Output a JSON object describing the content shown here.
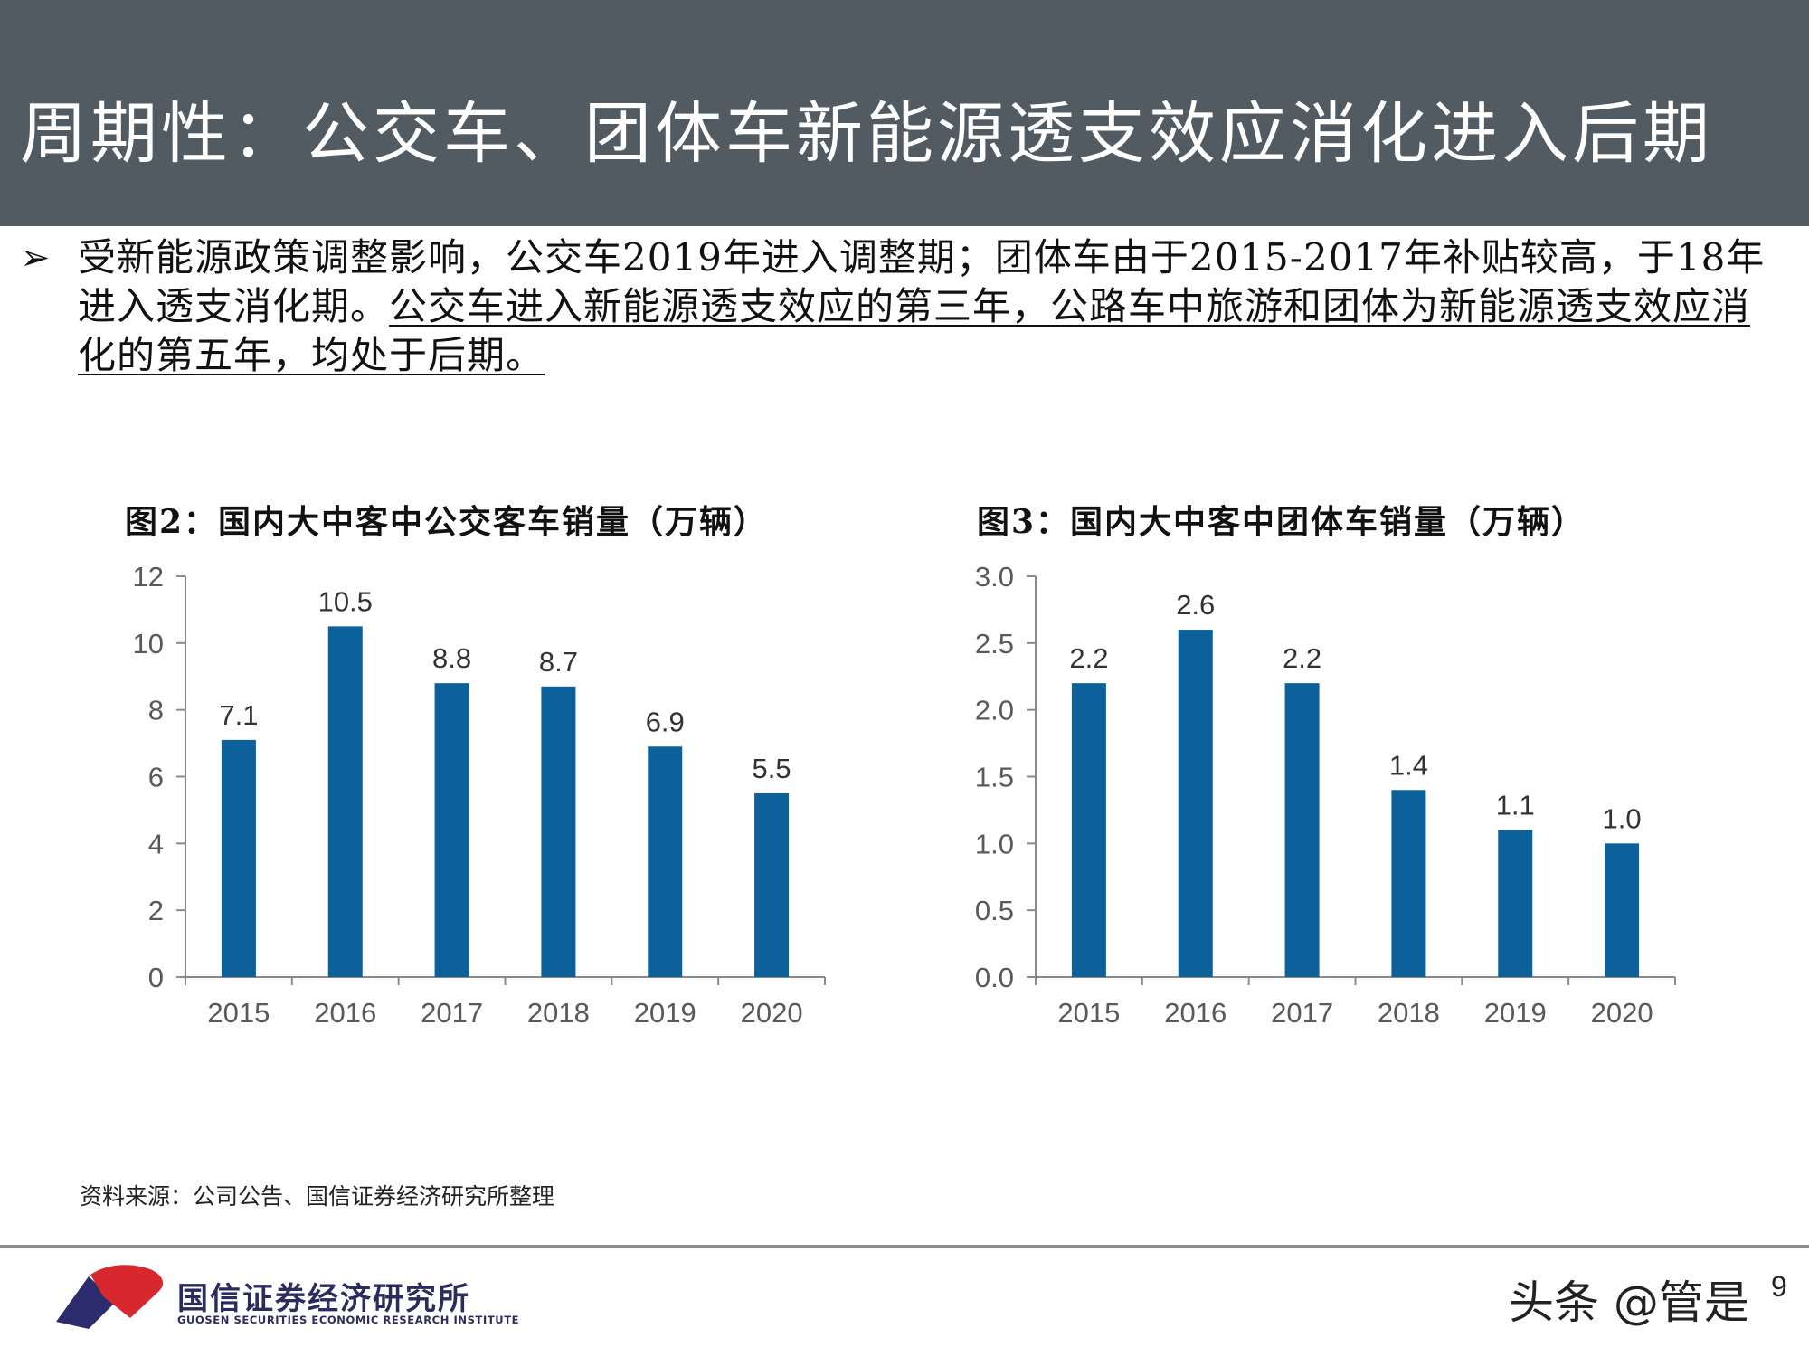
{
  "header": {
    "title": "周期性：公交车、团体车新能源透支效应消化进入后期"
  },
  "bullet": {
    "marker": "➢",
    "text_plain": "受新能源政策调整影响，公交车2019年进入调整期；团体车由于2015-2017年补贴较高，于18年进入透支消化期。",
    "text_underlined": "公交车进入新能源透支效应的第三年，公路车中旅游和团体为新能源透支效应消化的第五年，均处于后期。"
  },
  "chart_data": [
    {
      "type": "bar",
      "title": "图2：国内大中客中公交客车销量（万辆）",
      "categories": [
        "2015",
        "2016",
        "2017",
        "2018",
        "2019",
        "2020"
      ],
      "values": [
        7.1,
        10.5,
        8.8,
        8.7,
        6.9,
        5.5
      ],
      "value_labels": [
        "7.1",
        "10.5",
        "8.8",
        "8.7",
        "6.9",
        "5.5"
      ],
      "ylim": [
        0,
        12
      ],
      "yticks": [
        "0",
        "2",
        "4",
        "6",
        "8",
        "10",
        "12"
      ],
      "bar_color": "#0d619b",
      "grid": false,
      "legend": "none"
    },
    {
      "type": "bar",
      "title": "图3：国内大中客中团体车销量（万辆）",
      "categories": [
        "2015",
        "2016",
        "2017",
        "2018",
        "2019",
        "2020"
      ],
      "values": [
        2.2,
        2.6,
        2.2,
        1.4,
        1.1,
        1.0
      ],
      "value_labels": [
        "2.2",
        "2.6",
        "2.2",
        "1.4",
        "1.1",
        "1.0"
      ],
      "ylim": [
        0,
        3
      ],
      "yticks": [
        "0.0",
        "0.5",
        "1.0",
        "1.5",
        "2.0",
        "2.5",
        "3.0"
      ],
      "bar_color": "#0d619b",
      "grid": false,
      "legend": "none"
    }
  ],
  "source": "资料来源：公司公告、国信证券经济研究所整理",
  "footer": {
    "brand_cn": "国信证券经济研究所",
    "brand_en": "GUOSEN SECURITIES ECONOMIC RESEARCH INSTITUTE",
    "watermark": "头条 @管是",
    "page_number": "9",
    "logo_colors": [
      "#d7282f",
      "#2b2b6e"
    ]
  }
}
